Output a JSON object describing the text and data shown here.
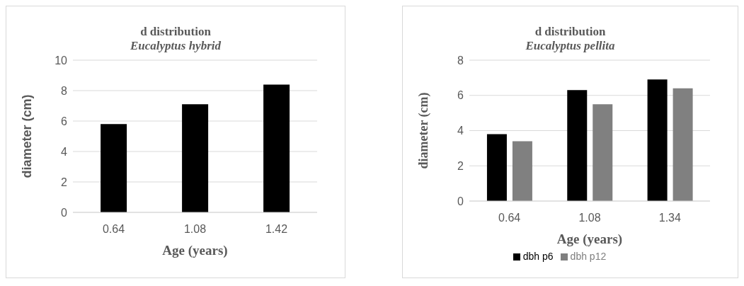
{
  "chart_data": [
    {
      "type": "bar",
      "title": "d distribution",
      "subtitle": "Eucalyptus hybrid",
      "xlabel": "Age (years)",
      "ylabel": "diameter (cm)",
      "categories": [
        "0.64",
        "1.08",
        "1.42"
      ],
      "values": [
        5.8,
        7.1,
        8.4
      ],
      "color": "#000000",
      "ylim": [
        0,
        10
      ],
      "yticks": [
        0,
        2,
        4,
        6,
        8,
        10
      ],
      "grid": "y"
    },
    {
      "type": "bar",
      "title": "d distribution",
      "subtitle": "Eucalyptus pellita",
      "xlabel": "Age (years)",
      "ylabel": "diameter (cm)",
      "categories": [
        "0.64",
        "1.08",
        "1.34"
      ],
      "series": [
        {
          "name": "dbh p6",
          "color": "#000000",
          "values": [
            3.8,
            6.3,
            6.9
          ]
        },
        {
          "name": "dbh p12",
          "color": "#808080",
          "values": [
            3.4,
            5.5,
            6.4
          ]
        }
      ],
      "ylim": [
        0,
        8
      ],
      "yticks": [
        0,
        2,
        4,
        6,
        8
      ],
      "grid": "y",
      "legend": "bottom"
    }
  ]
}
